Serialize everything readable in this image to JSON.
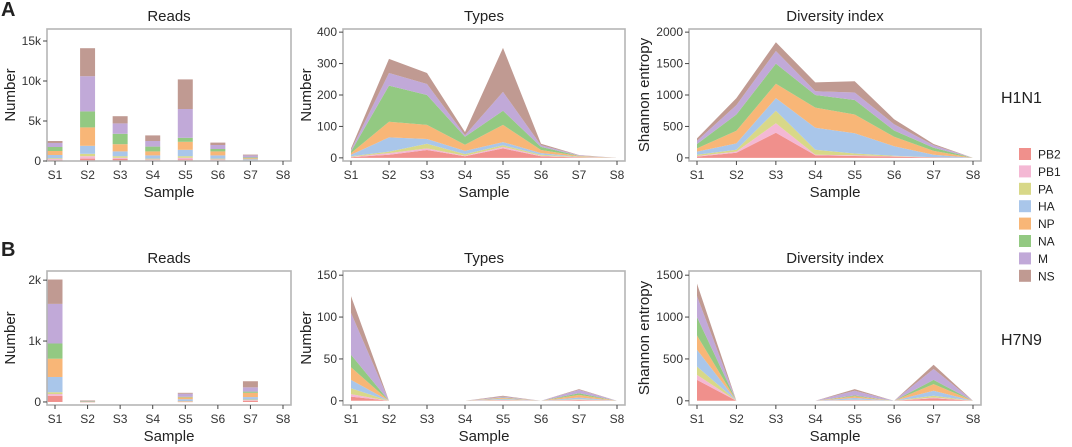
{
  "figure": {
    "panel_letters": [
      "A",
      "B"
    ],
    "strain_labels": [
      "H1N1",
      "H7N9"
    ]
  },
  "legend": {
    "items": [
      {
        "name": "PB2",
        "color": "#f0908c"
      },
      {
        "name": "PB1",
        "color": "#f4b8d4"
      },
      {
        "name": "PA",
        "color": "#d8d888"
      },
      {
        "name": "HA",
        "color": "#a9c6ea"
      },
      {
        "name": "NP",
        "color": "#f8b677"
      },
      {
        "name": "NA",
        "color": "#93c982"
      },
      {
        "name": "M",
        "color": "#c1a9d8"
      },
      {
        "name": "NS",
        "color": "#c09a92"
      }
    ]
  },
  "chart_data": [
    {
      "type": "bar",
      "stacked": true,
      "row": "A",
      "title": "Reads",
      "xlabel": "Sample",
      "ylabel": "Number",
      "categories": [
        "S1",
        "S2",
        "S3",
        "S4",
        "S5",
        "S6",
        "S7",
        "S8"
      ],
      "ylim": [
        0,
        16500
      ],
      "yticks": [
        0,
        5000,
        10000,
        15000
      ],
      "ytick_labels": [
        "0",
        "5k",
        "10k",
        "15k"
      ],
      "series": [
        {
          "name": "PB2",
          "values": [
            150,
            300,
            250,
            100,
            200,
            100,
            30,
            0
          ]
        },
        {
          "name": "PB1",
          "values": [
            100,
            300,
            150,
            100,
            200,
            100,
            20,
            0
          ]
        },
        {
          "name": "PA",
          "values": [
            100,
            300,
            200,
            100,
            200,
            100,
            20,
            0
          ]
        },
        {
          "name": "HA",
          "values": [
            400,
            1000,
            600,
            400,
            800,
            400,
            150,
            0
          ]
        },
        {
          "name": "NP",
          "values": [
            500,
            2300,
            900,
            500,
            1000,
            500,
            130,
            0
          ]
        },
        {
          "name": "NA",
          "values": [
            500,
            2000,
            1300,
            600,
            500,
            300,
            100,
            0
          ]
        },
        {
          "name": "M",
          "values": [
            500,
            4400,
            1300,
            700,
            3600,
            500,
            250,
            0
          ]
        },
        {
          "name": "NS",
          "values": [
            250,
            3500,
            900,
            700,
            3700,
            300,
            100,
            0
          ]
        }
      ]
    },
    {
      "type": "area",
      "stacked": true,
      "row": "A",
      "title": "Types",
      "xlabel": "Sample",
      "ylabel": "Number",
      "categories": [
        "S1",
        "S2",
        "S3",
        "S4",
        "S5",
        "S6",
        "S7",
        "S8"
      ],
      "ylim": [
        -10,
        410
      ],
      "yticks": [
        0,
        100,
        200,
        300,
        400
      ],
      "ytick_labels": [
        "0",
        "100",
        "200",
        "300",
        "400"
      ],
      "series": [
        {
          "name": "PB2",
          "values": [
            2,
            10,
            25,
            5,
            30,
            5,
            1,
            0
          ]
        },
        {
          "name": "PB1",
          "values": [
            1,
            5,
            5,
            2,
            5,
            2,
            1,
            0
          ]
        },
        {
          "name": "PA",
          "values": [
            2,
            5,
            15,
            5,
            5,
            3,
            1,
            0
          ]
        },
        {
          "name": "HA",
          "values": [
            5,
            45,
            15,
            10,
            10,
            5,
            1,
            0
          ]
        },
        {
          "name": "NP",
          "values": [
            5,
            50,
            45,
            20,
            55,
            10,
            2,
            0
          ]
        },
        {
          "name": "NA",
          "values": [
            5,
            115,
            95,
            25,
            45,
            10,
            1,
            0
          ]
        },
        {
          "name": "M",
          "values": [
            5,
            40,
            35,
            5,
            60,
            5,
            1,
            0
          ]
        },
        {
          "name": "NS",
          "values": [
            5,
            45,
            35,
            10,
            140,
            5,
            1,
            0
          ]
        }
      ]
    },
    {
      "type": "area",
      "stacked": true,
      "row": "A",
      "title": "Diversity index",
      "xlabel": "Sample",
      "ylabel": "Shannon entropy",
      "categories": [
        "S1",
        "S2",
        "S3",
        "S4",
        "S5",
        "S6",
        "S7",
        "S8"
      ],
      "ylim": [
        -50,
        2050
      ],
      "yticks": [
        0,
        500,
        1000,
        1500,
        2000
      ],
      "ytick_labels": [
        "0",
        "500",
        "1000",
        "1500",
        "2000"
      ],
      "series": [
        {
          "name": "PB2",
          "values": [
            20,
            80,
            400,
            40,
            30,
            20,
            5,
            0
          ]
        },
        {
          "name": "PB1",
          "values": [
            10,
            20,
            150,
            10,
            10,
            5,
            2,
            0
          ]
        },
        {
          "name": "PA",
          "values": [
            20,
            30,
            200,
            80,
            30,
            10,
            3,
            0
          ]
        },
        {
          "name": "HA",
          "values": [
            50,
            100,
            200,
            350,
            320,
            150,
            40,
            0
          ]
        },
        {
          "name": "NP",
          "values": [
            50,
            200,
            230,
            320,
            300,
            150,
            60,
            0
          ]
        },
        {
          "name": "NA",
          "values": [
            70,
            260,
            320,
            200,
            230,
            100,
            50,
            0
          ]
        },
        {
          "name": "M",
          "values": [
            50,
            150,
            200,
            60,
            120,
            100,
            40,
            0
          ]
        },
        {
          "name": "NS",
          "values": [
            40,
            110,
            140,
            140,
            180,
            80,
            20,
            0
          ]
        }
      ]
    },
    {
      "type": "bar",
      "stacked": true,
      "row": "B",
      "title": "Reads",
      "xlabel": "Sample",
      "ylabel": "Number",
      "categories": [
        "S1",
        "S2",
        "S3",
        "S4",
        "S5",
        "S6",
        "S7",
        "S8"
      ],
      "ylim": [
        -50,
        2150
      ],
      "yticks": [
        0,
        1000,
        2000
      ],
      "ytick_labels": [
        "0",
        "1k",
        "2k"
      ],
      "series": [
        {
          "name": "PB2",
          "values": [
            100,
            2,
            0,
            0,
            5,
            0,
            20,
            0
          ]
        },
        {
          "name": "PB1",
          "values": [
            30,
            2,
            0,
            0,
            5,
            0,
            10,
            0
          ]
        },
        {
          "name": "PA",
          "values": [
            30,
            2,
            0,
            0,
            5,
            0,
            10,
            0
          ]
        },
        {
          "name": "HA",
          "values": [
            250,
            3,
            0,
            0,
            30,
            0,
            40,
            0
          ]
        },
        {
          "name": "NP",
          "values": [
            300,
            3,
            0,
            0,
            30,
            0,
            70,
            0
          ]
        },
        {
          "name": "NA",
          "values": [
            250,
            3,
            0,
            0,
            10,
            0,
            20,
            0
          ]
        },
        {
          "name": "M",
          "values": [
            650,
            5,
            0,
            0,
            50,
            0,
            70,
            0
          ]
        },
        {
          "name": "NS",
          "values": [
            400,
            5,
            0,
            0,
            15,
            0,
            100,
            0
          ]
        }
      ]
    },
    {
      "type": "area",
      "stacked": true,
      "row": "B",
      "title": "Types",
      "xlabel": "Sample",
      "ylabel": "Number",
      "categories": [
        "S1",
        "S2",
        "S3",
        "S4",
        "S5",
        "S6",
        "S7",
        "S8"
      ],
      "ylim": [
        -5,
        155
      ],
      "yticks": [
        0,
        50,
        100,
        150
      ],
      "ytick_labels": [
        "0",
        "50",
        "100",
        "150"
      ],
      "series": [
        {
          "name": "PB2",
          "values": [
            5,
            0,
            0,
            0,
            0.5,
            0,
            1,
            0
          ]
        },
        {
          "name": "PB1",
          "values": [
            3,
            0,
            0,
            0,
            0.5,
            0,
            0.5,
            0
          ]
        },
        {
          "name": "PA",
          "values": [
            7,
            0,
            0,
            0,
            0.5,
            0,
            0.5,
            0
          ]
        },
        {
          "name": "HA",
          "values": [
            10,
            0,
            0,
            0,
            1,
            0,
            2,
            0
          ]
        },
        {
          "name": "NP",
          "values": [
            15,
            0,
            0,
            0,
            1,
            0,
            3,
            0
          ]
        },
        {
          "name": "NA",
          "values": [
            15,
            0,
            0,
            0,
            0.5,
            0,
            2,
            0
          ]
        },
        {
          "name": "M",
          "values": [
            50,
            0,
            0,
            0,
            1,
            0,
            4,
            0
          ]
        },
        {
          "name": "NS",
          "values": [
            20,
            0,
            0,
            0,
            1,
            0,
            1,
            0
          ]
        }
      ]
    },
    {
      "type": "area",
      "stacked": true,
      "row": "B",
      "title": "Diversity index",
      "xlabel": "Sample",
      "ylabel": "Shannon entropy",
      "categories": [
        "S1",
        "S2",
        "S3",
        "S4",
        "S5",
        "S6",
        "S7",
        "S8"
      ],
      "ylim": [
        -50,
        1550
      ],
      "yticks": [
        0,
        500,
        1000,
        1500
      ],
      "ytick_labels": [
        "0",
        "500",
        "1000",
        "1500"
      ],
      "series": [
        {
          "name": "PB2",
          "values": [
            250,
            0,
            0,
            0,
            5,
            0,
            30,
            0
          ]
        },
        {
          "name": "PB1",
          "values": [
            60,
            0,
            0,
            0,
            5,
            0,
            10,
            0
          ]
        },
        {
          "name": "PA",
          "values": [
            100,
            0,
            0,
            0,
            5,
            0,
            20,
            0
          ]
        },
        {
          "name": "HA",
          "values": [
            200,
            0,
            0,
            0,
            20,
            0,
            60,
            0
          ]
        },
        {
          "name": "NP",
          "values": [
            170,
            0,
            0,
            0,
            20,
            0,
            80,
            0
          ]
        },
        {
          "name": "NA",
          "values": [
            220,
            0,
            0,
            0,
            10,
            0,
            50,
            0
          ]
        },
        {
          "name": "M",
          "values": [
            250,
            0,
            0,
            0,
            55,
            0,
            130,
            0
          ]
        },
        {
          "name": "NS",
          "values": [
            150,
            0,
            0,
            0,
            20,
            0,
            50,
            0
          ]
        }
      ]
    }
  ]
}
